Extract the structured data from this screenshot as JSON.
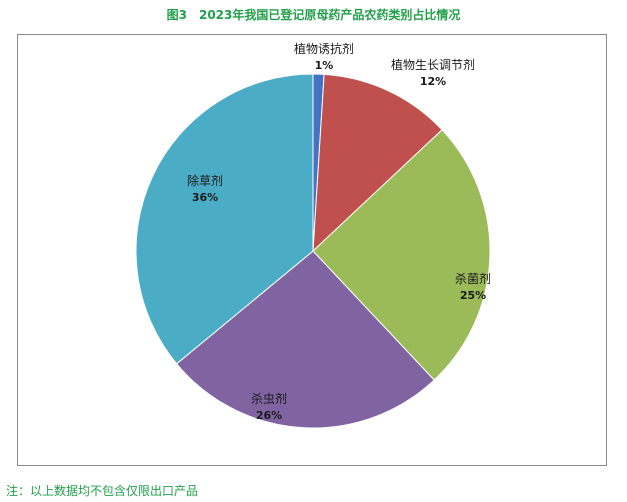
{
  "chart_data": {
    "type": "pie",
    "title": "图3　2023年我国已登记原母药产品农药类别占比情况",
    "note": "注：以上数据均不包含仅限出口产品",
    "slices": [
      {
        "label": "植物诱抗剂",
        "value": 1,
        "value_text": "1%",
        "color": "#4472c4"
      },
      {
        "label": "植物生长调节剂",
        "value": 12,
        "value_text": "12%",
        "color": "#c0504d"
      },
      {
        "label": "杀菌剂",
        "value": 25,
        "value_text": "25%",
        "color": "#9bbb59"
      },
      {
        "label": "杀虫剂",
        "value": 26,
        "value_text": "26%",
        "color": "#8064a2"
      },
      {
        "label": "除草剂",
        "value": 36,
        "value_text": "36%",
        "color": "#4bacc6"
      }
    ]
  }
}
